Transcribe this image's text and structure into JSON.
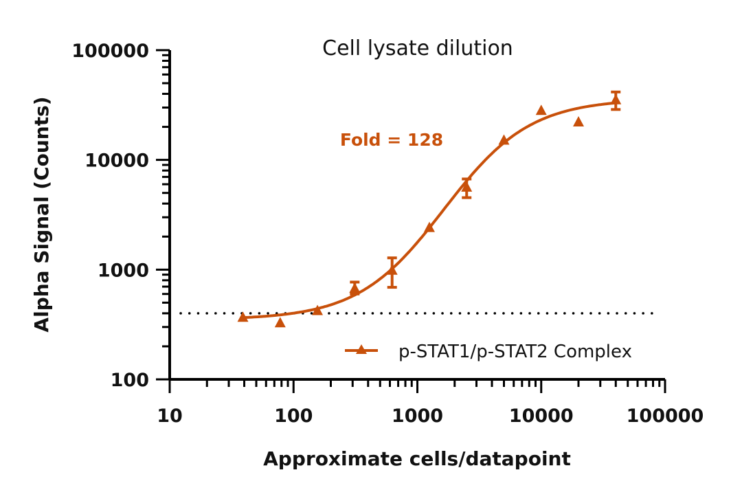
{
  "chart_data": {
    "type": "scatter",
    "title": "Cell lysate dilution",
    "xlabel": "Approximate cells/datapoint",
    "ylabel": "Alpha Signal (Counts)",
    "x_scale": "log",
    "y_scale": "log",
    "xlim": [
      10,
      100000
    ],
    "ylim": [
      100,
      100000
    ],
    "x_ticks": [
      "10",
      "100",
      "1000",
      "10000",
      "100000"
    ],
    "y_ticks": [
      "100",
      "1000",
      "10000",
      "100000"
    ],
    "grid": false,
    "legend_position": "bottom-right",
    "annotation": "Fold = 128",
    "background_line": {
      "y": 400,
      "style": "dotted",
      "color": "#000000"
    },
    "color": "#C8500A",
    "series": [
      {
        "name": "p-STAT1/p-STAT2 Complex",
        "marker": "triangle",
        "x": [
          39,
          78,
          156,
          312,
          625,
          1250,
          2500,
          5000,
          10000,
          20000,
          40000
        ],
        "y": [
          365,
          325,
          420,
          670,
          980,
          2400,
          5600,
          15000,
          28000,
          22000,
          35000
        ],
        "y_err_upper": [
          null,
          null,
          null,
          770,
          1280,
          null,
          6700,
          null,
          null,
          null,
          41600
        ],
        "y_err_lower": [
          null,
          null,
          null,
          600,
          690,
          null,
          4530,
          null,
          null,
          null,
          28800
        ],
        "fit": "sigmoidal"
      }
    ]
  }
}
